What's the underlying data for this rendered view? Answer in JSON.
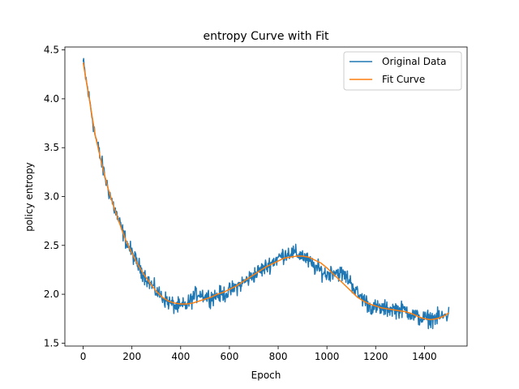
{
  "chart_data": {
    "type": "line",
    "title": "entropy Curve with Fit",
    "xlabel": "Epoch",
    "ylabel": "policy entropy",
    "xlim": [
      -75,
      1575
    ],
    "ylim": [
      1.47,
      4.53
    ],
    "xticks": [
      0,
      200,
      400,
      600,
      800,
      1000,
      1200,
      1400
    ],
    "yticks": [
      1.5,
      2.0,
      2.5,
      3.0,
      3.5,
      4.0,
      4.5
    ],
    "xtick_labels": [
      "0",
      "200",
      "400",
      "600",
      "800",
      "1000",
      "1200",
      "1400"
    ],
    "ytick_labels": [
      "1.5",
      "2.0",
      "2.5",
      "3.0",
      "3.5",
      "4.0",
      "4.5"
    ],
    "grid": false,
    "legend_position": "top-right",
    "x_range": [
      0,
      1500
    ],
    "series": [
      {
        "name": "Original Data",
        "color": "#1f77b4",
        "style": "noisy",
        "noise_amplitude": 0.06,
        "x": [
          0,
          25,
          50,
          75,
          100,
          125,
          150,
          175,
          200,
          225,
          250,
          275,
          300,
          325,
          350,
          375,
          400,
          425,
          450,
          475,
          500,
          525,
          550,
          575,
          600,
          625,
          650,
          675,
          700,
          725,
          750,
          775,
          800,
          825,
          850,
          875,
          900,
          925,
          950,
          975,
          1000,
          1025,
          1050,
          1075,
          1100,
          1125,
          1150,
          1175,
          1200,
          1225,
          1250,
          1275,
          1300,
          1325,
          1350,
          1375,
          1400,
          1425,
          1450,
          1475,
          1500
        ],
        "y": [
          4.37,
          4.0,
          3.62,
          3.35,
          3.1,
          2.9,
          2.72,
          2.55,
          2.42,
          2.3,
          2.2,
          2.11,
          2.03,
          1.97,
          1.92,
          1.88,
          1.87,
          1.89,
          1.96,
          2.02,
          1.98,
          1.97,
          1.99,
          2.0,
          2.03,
          2.07,
          2.11,
          2.15,
          2.2,
          2.24,
          2.28,
          2.33,
          2.37,
          2.41,
          2.43,
          2.41,
          2.4,
          2.33,
          2.28,
          2.24,
          2.2,
          2.24,
          2.22,
          2.19,
          2.12,
          2.0,
          1.95,
          1.88,
          1.86,
          1.85,
          1.85,
          1.85,
          1.84,
          1.84,
          1.79,
          1.76,
          1.75,
          1.75,
          1.76,
          1.77,
          1.8
        ]
      },
      {
        "name": "Fit Curve",
        "color": "#ff7f0e",
        "style": "smooth",
        "x": [
          0,
          25,
          50,
          75,
          100,
          125,
          150,
          175,
          200,
          225,
          250,
          275,
          300,
          325,
          350,
          375,
          400,
          425,
          450,
          475,
          500,
          525,
          550,
          575,
          600,
          625,
          650,
          675,
          700,
          725,
          750,
          775,
          800,
          825,
          850,
          875,
          900,
          925,
          950,
          975,
          1000,
          1025,
          1050,
          1075,
          1100,
          1125,
          1150,
          1175,
          1200,
          1225,
          1250,
          1275,
          1300,
          1325,
          1350,
          1375,
          1400,
          1425,
          1450,
          1475,
          1500
        ],
        "y": [
          4.37,
          4.0,
          3.62,
          3.35,
          3.1,
          2.9,
          2.72,
          2.55,
          2.42,
          2.3,
          2.2,
          2.11,
          2.03,
          1.97,
          1.93,
          1.91,
          1.9,
          1.9,
          1.91,
          1.93,
          1.95,
          1.97,
          2.0,
          2.02,
          2.05,
          2.08,
          2.12,
          2.16,
          2.2,
          2.24,
          2.28,
          2.31,
          2.34,
          2.37,
          2.38,
          2.39,
          2.39,
          2.38,
          2.35,
          2.32,
          2.27,
          2.21,
          2.15,
          2.09,
          2.03,
          1.97,
          1.93,
          1.9,
          1.88,
          1.86,
          1.85,
          1.84,
          1.83,
          1.82,
          1.8,
          1.77,
          1.75,
          1.74,
          1.75,
          1.77,
          1.81
        ]
      }
    ]
  }
}
